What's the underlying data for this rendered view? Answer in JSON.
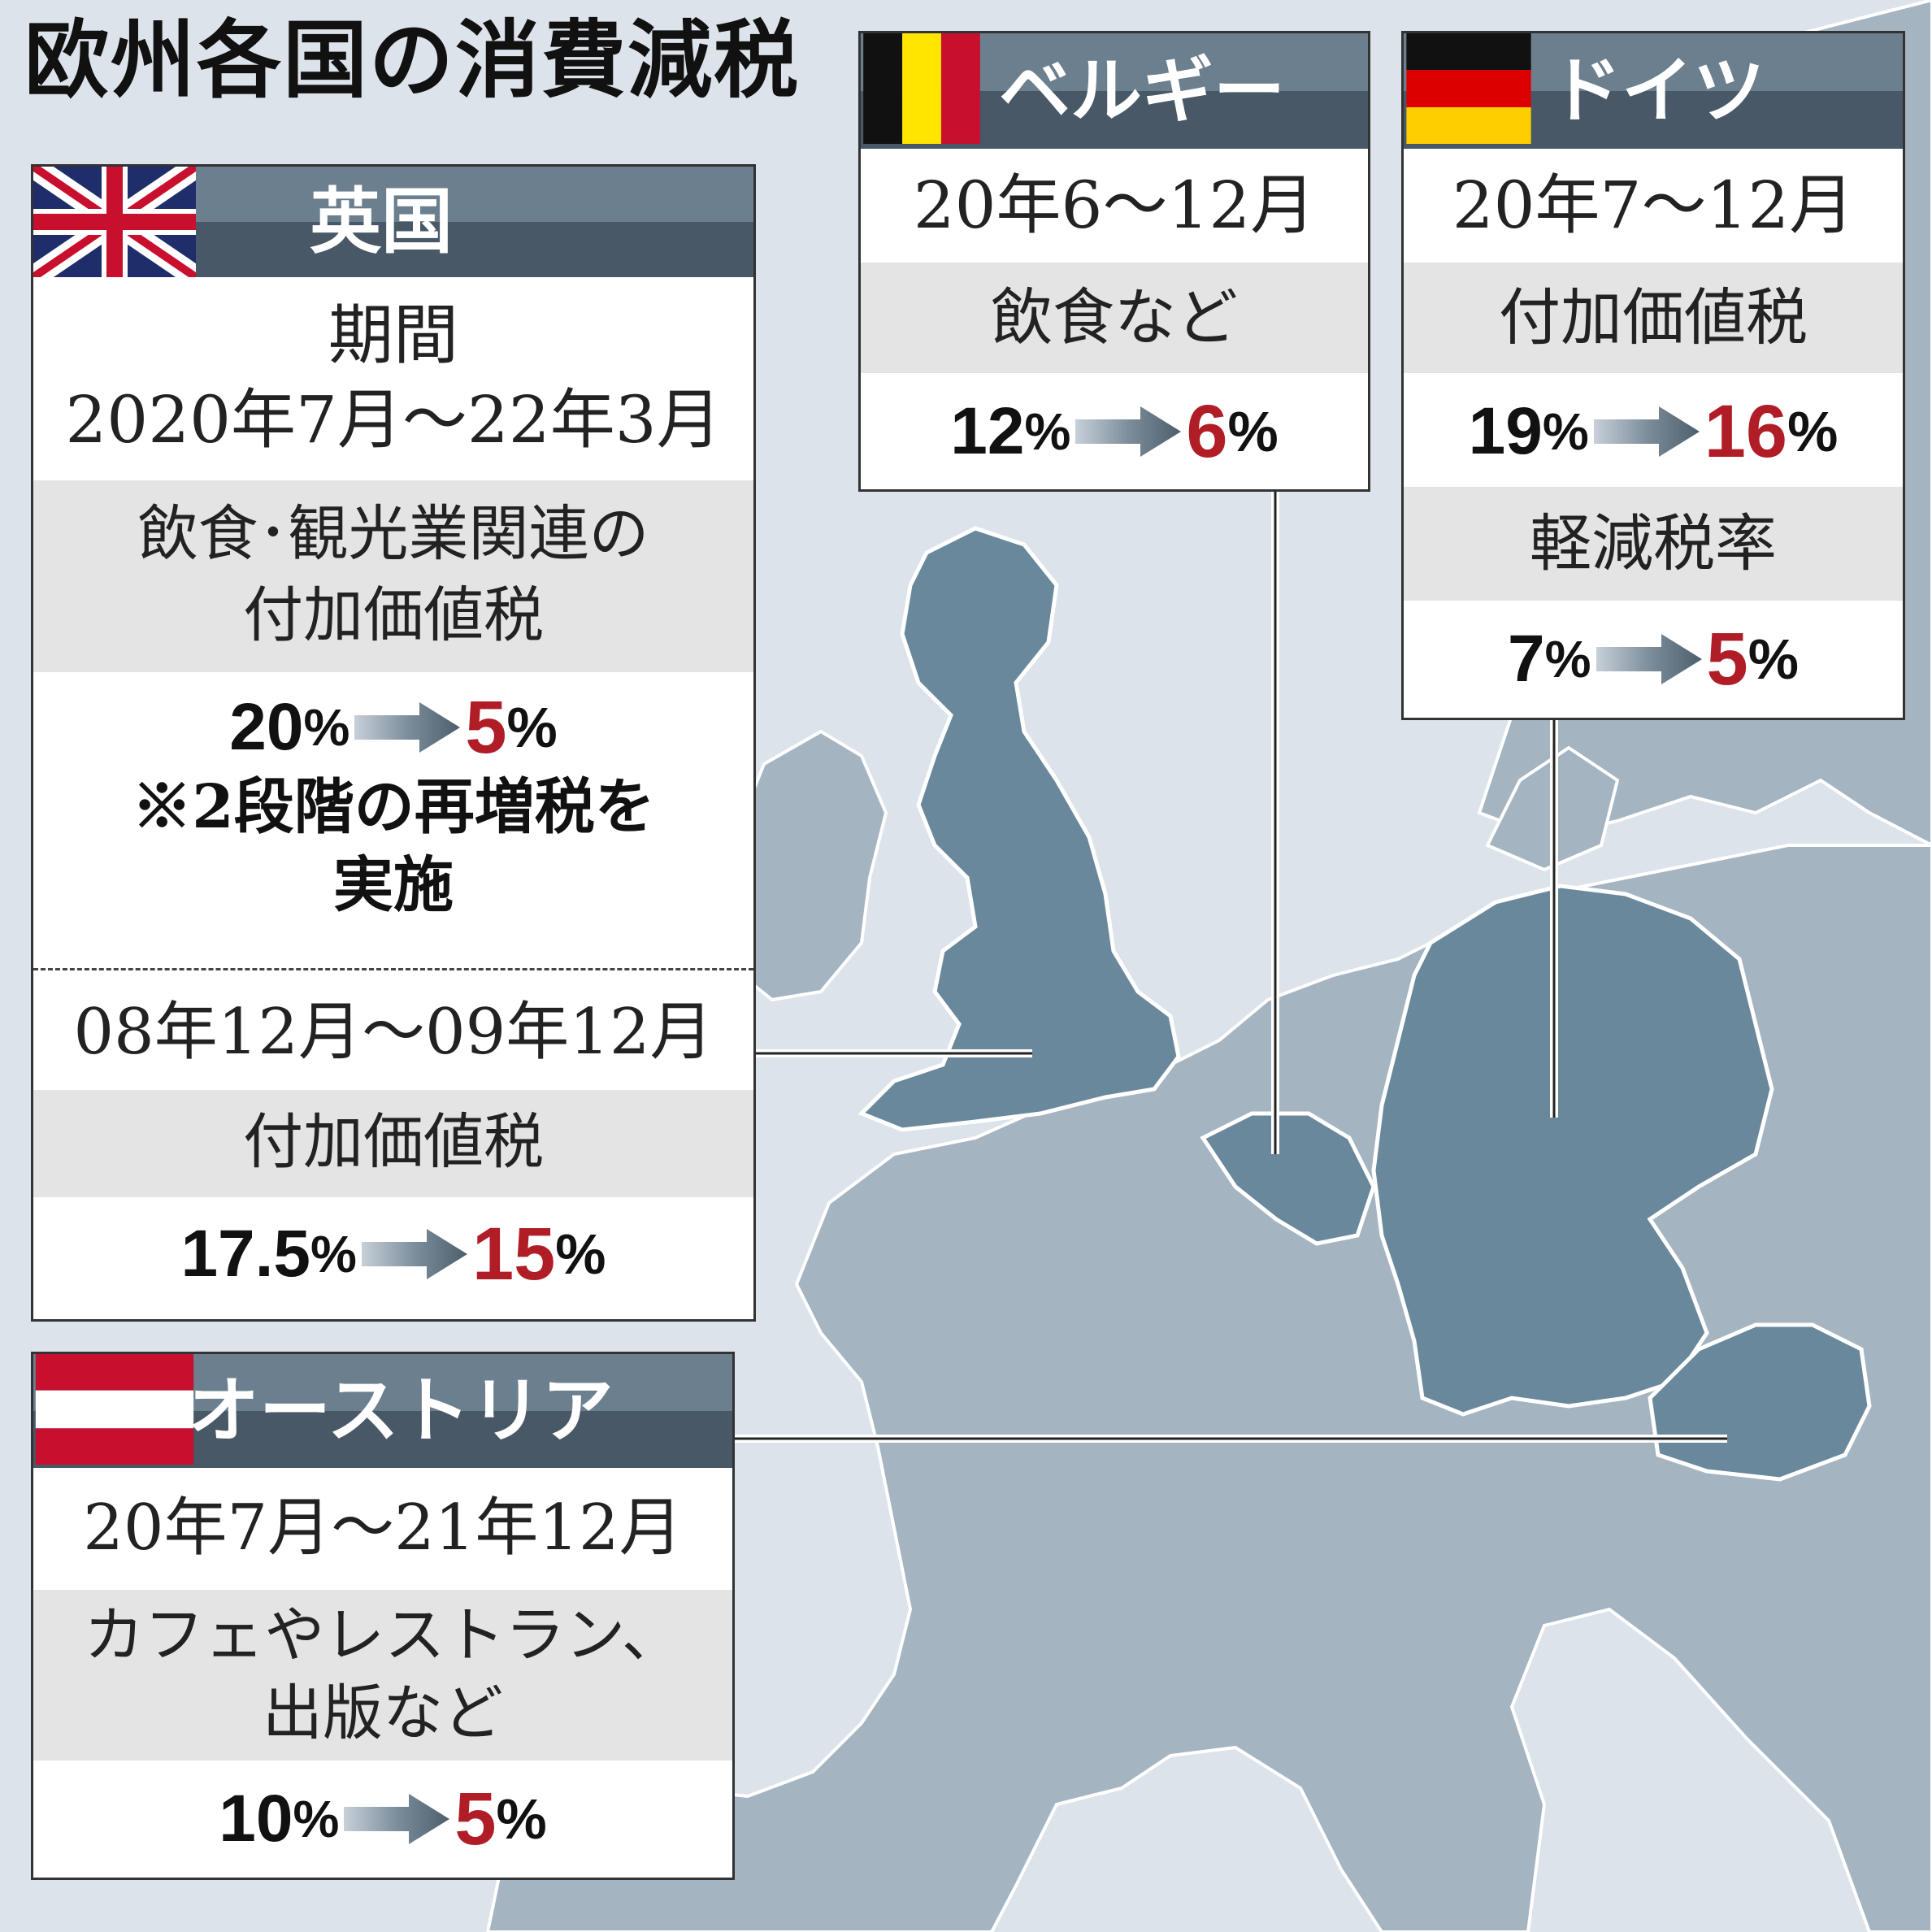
{
  "title": "欧州各国の消費減税",
  "colors": {
    "highlight": "#b01d26",
    "header_top": "#6b7f8e",
    "header_bottom": "#485866",
    "sea": "#dde3ea",
    "land": "#a4b4c1",
    "featured_land": "#6a889c"
  },
  "uk": {
    "name": "英国",
    "period_label": "期間",
    "period": "2020年7月～22年3月",
    "category_line1": "飲食･観光業関連の",
    "category_line2": "付加価値税",
    "rate_old": "20",
    "rate_new": "5",
    "pct": "%",
    "note_line1": "※2段階の再増税を",
    "note_line2": "実施",
    "period2": "08年12月～09年12月",
    "category2": "付加価値税",
    "rate2_old": "17.5",
    "rate2_new": "15"
  },
  "belgium": {
    "name": "ベルギー",
    "period": "20年6～12月",
    "category": "飲食など",
    "rate_old": "12",
    "rate_new": "6",
    "pct": "%"
  },
  "germany": {
    "name": "ドイツ",
    "period": "20年7～12月",
    "category": "付加価値税",
    "rate_old": "19",
    "rate_new": "16",
    "category2": "軽減税率",
    "rate2_old": "7",
    "rate2_new": "5",
    "pct": "%"
  },
  "austria": {
    "name": "オーストリア",
    "period": "20年7月～21年12月",
    "category_line1": "カフェやレストラン、",
    "category_line2": "出版など",
    "rate_old": "10",
    "rate_new": "5",
    "pct": "%"
  }
}
